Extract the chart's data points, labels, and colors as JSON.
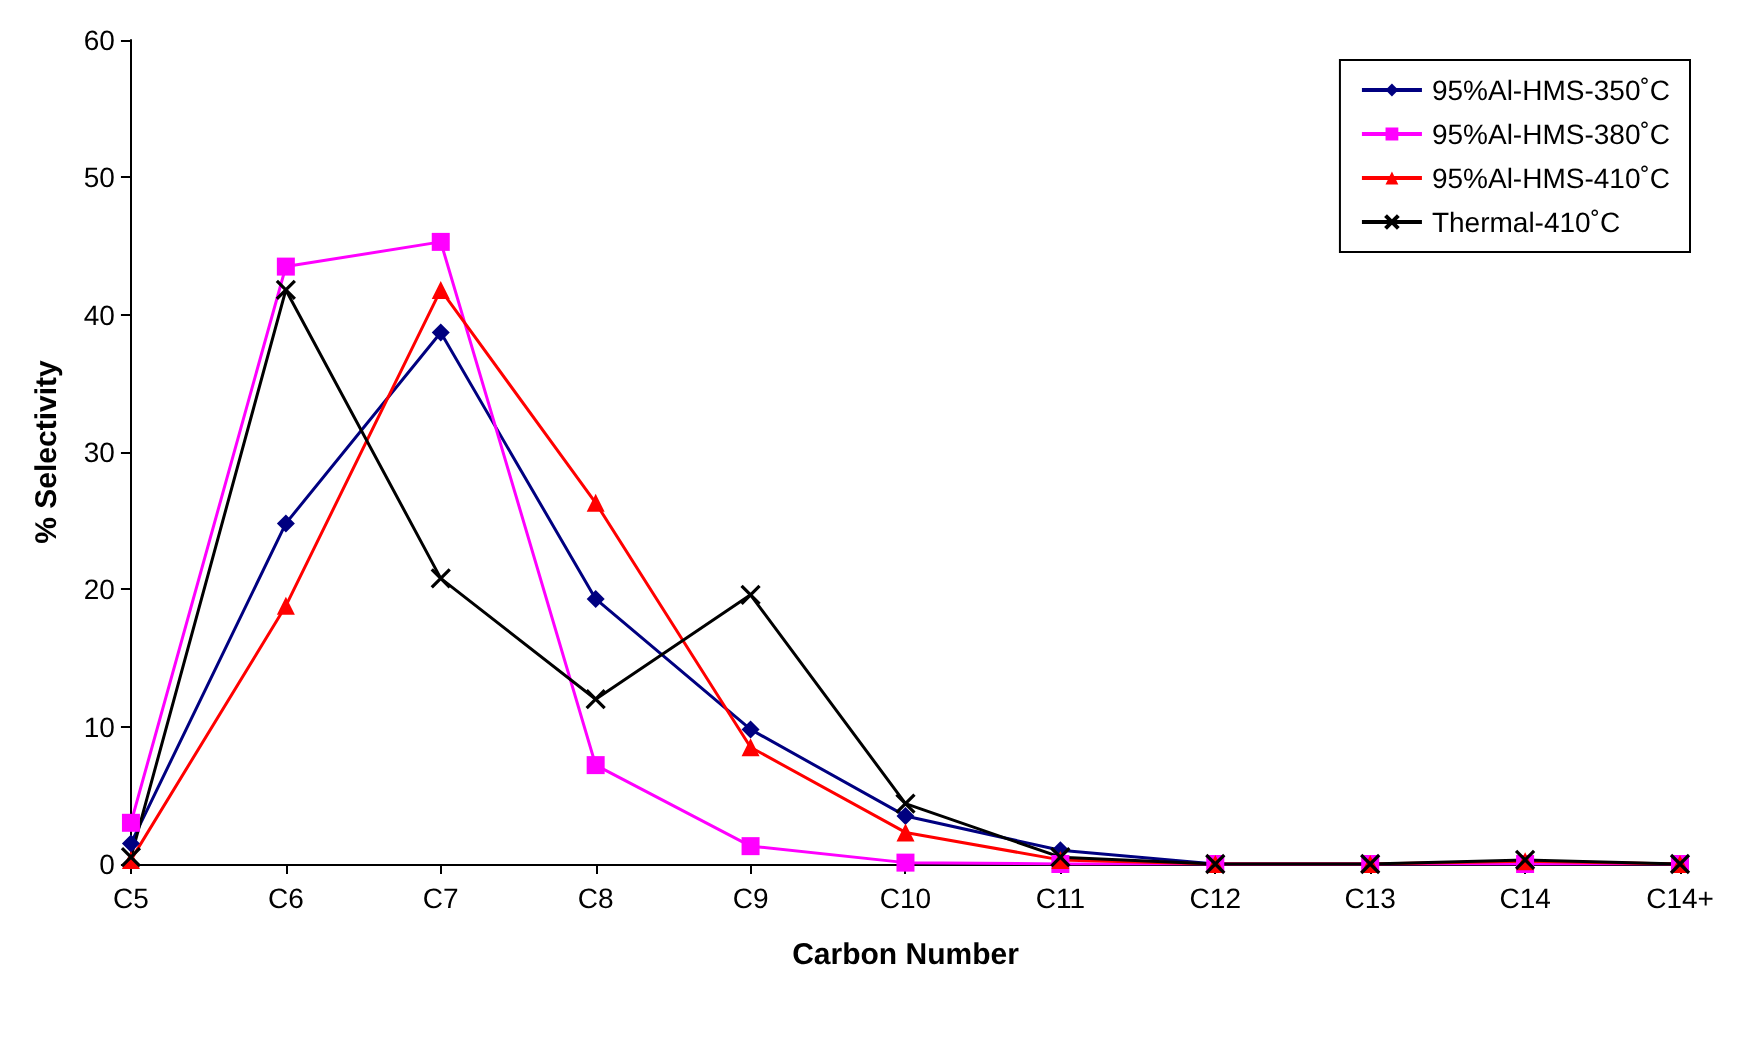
{
  "chart_data": {
    "type": "line",
    "xlabel": "Carbon Number",
    "ylabel": "% Selectivity",
    "categories": [
      "C5",
      "C6",
      "C7",
      "C8",
      "C9",
      "C10",
      "C11",
      "C12",
      "C13",
      "C14",
      "C14+"
    ],
    "ylim": [
      0,
      60
    ],
    "yticks": [
      0,
      10,
      20,
      30,
      40,
      50,
      60
    ],
    "grid": false,
    "legend": "top right",
    "line_style": "solid",
    "series": [
      {
        "name": "95%Al-HMS-350˚C",
        "color": "#000080",
        "marker": "diamond",
        "values": [
          1.5,
          24.8,
          38.7,
          19.3,
          9.8,
          3.5,
          1.0,
          0,
          0,
          null,
          null
        ]
      },
      {
        "name": "95%Al-HMS-380˚C",
        "color": "#ff00ff",
        "marker": "square",
        "values": [
          3,
          43.5,
          45.3,
          7.2,
          1.3,
          0.1,
          0,
          0,
          0,
          0,
          0
        ]
      },
      {
        "name": "95%Al-HMS-410˚C",
        "color": "#ff0000",
        "marker": "triangle",
        "values": [
          0.3,
          18.8,
          41.8,
          26.3,
          8.5,
          2.3,
          0.3,
          0,
          0,
          0.2,
          0
        ]
      },
      {
        "name": "Thermal-410˚C",
        "color": "#000000",
        "marker": "cross",
        "values": [
          0.5,
          41.8,
          20.8,
          12.0,
          19.6,
          4.4,
          0.5,
          0,
          0,
          0.3,
          0
        ]
      }
    ]
  }
}
